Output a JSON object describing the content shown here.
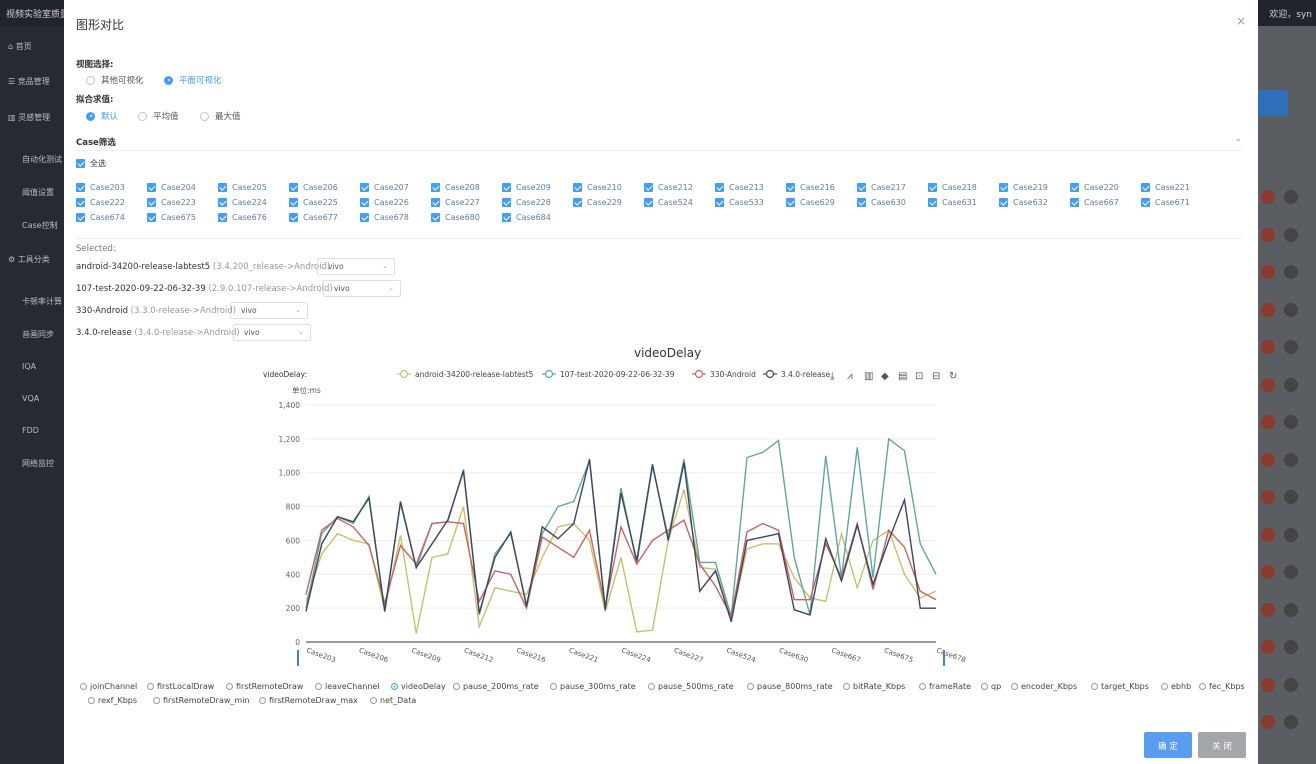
{
  "app": {
    "title": "视频实验室质量",
    "user": "欢迎，syn"
  },
  "sidebar": {
    "items": [
      "首页",
      "竞品管理",
      "灵感管理",
      "自动化测试",
      "阈值设置",
      "Case控制",
      "工具分类",
      "卡顿率计算",
      "音画同步",
      "IQA",
      "VQA",
      "FDD",
      "网络监控"
    ]
  },
  "modal": {
    "title": "图形对比",
    "close": "×",
    "view_label": "视图选择:",
    "view_options": [
      "其他可视化",
      "平面可视化"
    ],
    "fit_label": "拟合求值:",
    "fit_options": [
      "默认",
      "平均值",
      "最大值"
    ],
    "case_label": "Case筛选",
    "select_all": "全选",
    "cases": [
      "Case203",
      "Case204",
      "Case205",
      "Case206",
      "Case207",
      "Case208",
      "Case209",
      "Case210",
      "Case212",
      "Case213",
      "Case216",
      "Case217",
      "Case218",
      "Case219",
      "Case220",
      "Case221",
      "Case222",
      "Case223",
      "Case224",
      "Case225",
      "Case226",
      "Case227",
      "Case228",
      "Case229",
      "Case524",
      "Case533",
      "Case629",
      "Case630",
      "Case631",
      "Case632",
      "Case667",
      "Case671",
      "Case674",
      "Case675",
      "Case676",
      "Case677",
      "Case678",
      "Case680",
      "Case684"
    ],
    "selected_label": "Selected:",
    "selected": [
      {
        "name": "android-34200-release-labtest5",
        "version": "(3.4.200_release->Android)",
        "device": "vivo"
      },
      {
        "name": "107-test-2020-09-22-06-32-39",
        "version": "(2.9.0.107-release->Android)",
        "device": "vivo"
      },
      {
        "name": "330-Android",
        "version": "(3.3.0-release->Android)",
        "device": "vivo"
      },
      {
        "name": "3.4.0-release",
        "version": "(3.4.0-release->Android)",
        "device": "vivo"
      }
    ],
    "metrics": [
      "joinChannel",
      "firstLocalDraw",
      "firstRemoteDraw",
      "leaveChannel",
      "videoDelay",
      "pause_200ms_rate",
      "pause_300ms_rate",
      "pause_500ms_rate",
      "pause_800ms_rate",
      "bitRate_Kbps",
      "frameRate",
      "qp",
      "encoder_Kbps",
      "target_Kbps",
      "ebhb",
      "fec_Kbps",
      "rexf_Kbps",
      "firstRemoteDraw_min",
      "firstRemoteDraw_max",
      "net_Data"
    ],
    "metric_selected": "videoDelay",
    "ok_label": "确 定",
    "cancel_label": "关 闭"
  },
  "chart_data": {
    "type": "line",
    "title": "videoDelay",
    "legend_title": "videoDelay:",
    "ylabel": "单位:ms",
    "ylim": [
      0,
      1400
    ],
    "yticks": [
      0,
      200,
      400,
      600,
      800,
      1000,
      1200,
      1400
    ],
    "grid": true,
    "legend_position": "top",
    "x_tick_labels": [
      "Case203",
      "Case206",
      "Case209",
      "Case212",
      "Case216",
      "Case221",
      "Case224",
      "Case227",
      "Case524",
      "Case630",
      "Case667",
      "Case675",
      "Case678"
    ],
    "series": [
      {
        "name": "android-34200-release-labtest5",
        "color": "#c9c06b",
        "values": [
          240,
          520,
          640,
          600,
          580,
          190,
          630,
          50,
          500,
          520,
          800,
          90,
          320,
          300,
          280,
          500,
          680,
          700,
          600,
          180,
          500,
          60,
          70,
          600,
          900,
          440,
          430,
          140,
          550,
          580,
          580,
          380,
          260,
          240,
          640,
          320,
          600,
          660,
          400,
          260,
          300
        ]
      },
      {
        "name": "107-test-2020-09-22-06-32-39",
        "color": "#5fa7a0",
        "values": [
          200,
          640,
          740,
          700,
          860,
          180,
          820,
          440,
          700,
          710,
          1020,
          160,
          520,
          640,
          220,
          640,
          800,
          830,
          1070,
          200,
          910,
          460,
          1040,
          620,
          1080,
          470,
          470,
          150,
          1090,
          1120,
          1190,
          500,
          160,
          1100,
          380,
          1150,
          380,
          1200,
          1130,
          580,
          400
        ]
      },
      {
        "name": "330-Android",
        "color": "#c9655e",
        "values": [
          280,
          660,
          730,
          680,
          570,
          230,
          570,
          460,
          700,
          710,
          700,
          240,
          420,
          400,
          200,
          620,
          560,
          500,
          660,
          210,
          680,
          460,
          600,
          660,
          720,
          460,
          330,
          150,
          650,
          700,
          660,
          250,
          250,
          580,
          380,
          700,
          310,
          660,
          560,
          300,
          250
        ]
      },
      {
        "name": "3.4.0-release",
        "color": "#3a4660",
        "values": [
          180,
          580,
          740,
          710,
          850,
          180,
          830,
          440,
          580,
          720,
          1010,
          170,
          500,
          650,
          210,
          680,
          610,
          700,
          1080,
          190,
          880,
          480,
          1050,
          600,
          1060,
          300,
          420,
          120,
          600,
          620,
          640,
          190,
          160,
          610,
          360,
          690,
          340,
          600,
          840,
          200,
          200
        ]
      }
    ]
  },
  "toolbox_icons": [
    "download-icon",
    "line-icon",
    "bar-icon",
    "stack-icon",
    "data-view-icon",
    "zoom-icon",
    "zoom-reset-icon",
    "restore-icon"
  ]
}
